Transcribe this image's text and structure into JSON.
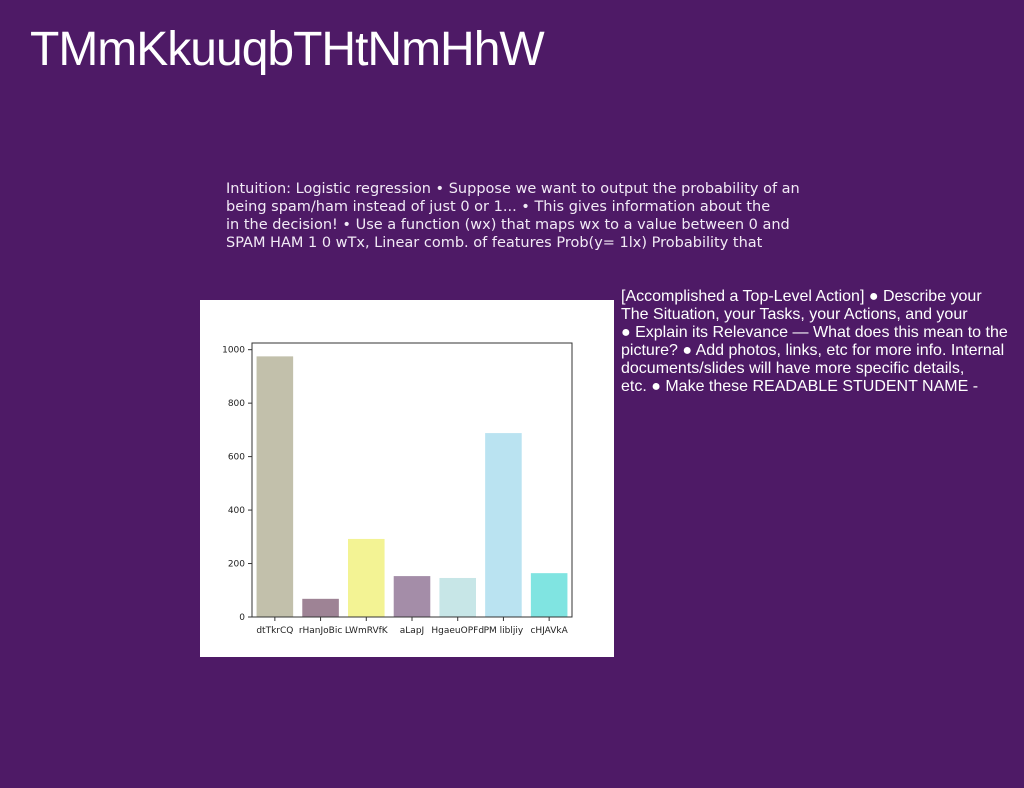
{
  "slide": {
    "title": "TMmKkuuqbTHtNmHhW",
    "intro_lines": [
      "Intuition: Logistic regression • Suppose we want to output the probability of an",
      "being spam/ham instead of just 0 or 1... • This gives information about the",
      "in the decision! • Use a function (wx) that maps wx to a value between 0 and",
      "SPAM HAM 1 0 wTx, Linear comb. of features Prob(y= 1lx) Probability that"
    ],
    "side_lines": [
      "[Accomplished a Top-Level Action] ● Describe your",
      "The Situation, your Tasks, your Actions, and your",
      "● Explain its Relevance — What does this mean to the",
      "picture? ● Add photos, links, etc for more info. Internal",
      "documents/slides will have more specific details,",
      "etc. ● Make these READABLE STUDENT NAME -"
    ]
  },
  "colors": {
    "background": "#4e1a66",
    "chart_background": "#ffffff"
  },
  "chart_data": {
    "type": "bar",
    "categories": [
      "dtTkrCQ",
      "rHanJoBic",
      "LWmRVfK",
      "aLapJ",
      "HgaeuOPFd",
      "PM libljiy",
      "cHJAVkA"
    ],
    "values": [
      975,
      68,
      292,
      153,
      146,
      688,
      164
    ],
    "colors": [
      "#c2c0ab",
      "#9e8395",
      "#f3f394",
      "#a48da8",
      "#c7e6e7",
      "#bae3f1",
      "#80e4e1"
    ],
    "yticks": [
      0,
      200,
      400,
      600,
      800,
      1000
    ],
    "ylim": [
      0,
      1025
    ],
    "title": "",
    "xlabel": "",
    "ylabel": "",
    "grid": false
  }
}
